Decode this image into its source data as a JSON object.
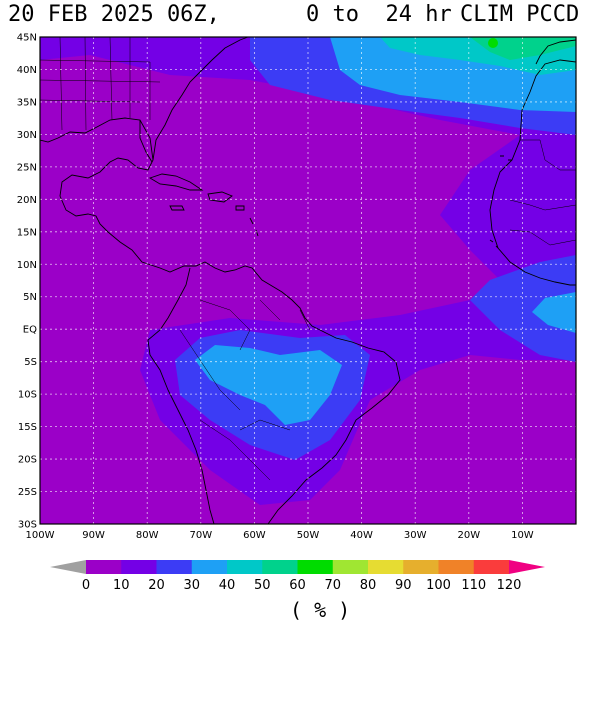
{
  "title": {
    "date": "20 FEB 2025 06Z,",
    "range": "0 to  24 hr",
    "product": "CLIM PCCD"
  },
  "map": {
    "lat_labels": [
      "45N",
      "40N",
      "35N",
      "30N",
      "25N",
      "20N",
      "15N",
      "10N",
      "5N",
      "EQ",
      "5S",
      "10S",
      "15S",
      "20S",
      "25S",
      "30S"
    ],
    "lon_labels": [
      "100W",
      "90W",
      "80W",
      "70W",
      "60W",
      "50W",
      "40W",
      "30W",
      "20W",
      "10W"
    ]
  },
  "colorbar": {
    "labels": [
      "0",
      "10",
      "20",
      "30",
      "40",
      "50",
      "60",
      "70",
      "80",
      "90",
      "100",
      "110",
      "120"
    ],
    "colors": [
      "#9b00c8",
      "#7400e6",
      "#3c3cf5",
      "#1ea0f5",
      "#00c8c8",
      "#00d28c",
      "#00dc00",
      "#a0e632",
      "#e6dc32",
      "#e6af2d",
      "#f08228",
      "#fa3c3c",
      "#f00082"
    ],
    "under_color": "#a0a0a0",
    "over_color": "#f00082",
    "units": "( % )"
  },
  "field_colors": {
    "bg": "#9b00c8",
    "low": "#7400e6",
    "mid": "#3c3cf5",
    "high": "#1ea0f5",
    "peak": "#00c8c8",
    "max": "#00d28c",
    "green": "#00dc00"
  }
}
